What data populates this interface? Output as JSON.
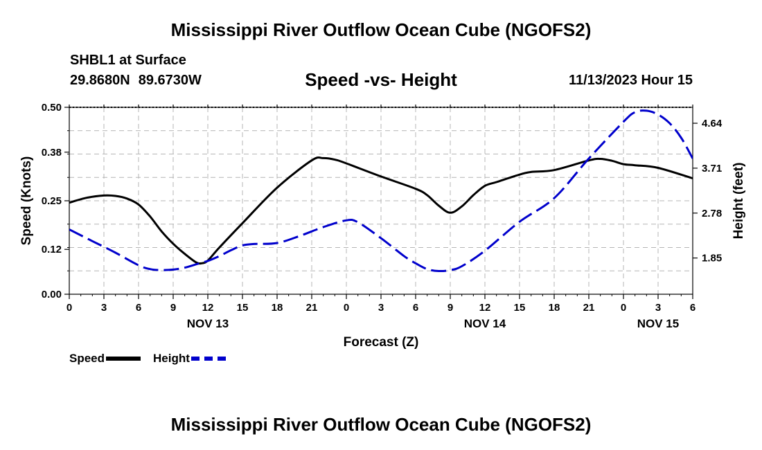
{
  "title": "Mississippi River Outflow Ocean Cube (NGOFS2)",
  "station": "SHBL1 at Surface",
  "latitude": "29.8680N",
  "longitude": "89.6730W",
  "subtitle": "Speed -vs- Height",
  "datetime": "11/13/2023 Hour 15",
  "legend": [
    {
      "label": "Speed",
      "color": "#000000",
      "style": "solid"
    },
    {
      "label": "Height",
      "color": "#0000cc",
      "style": "dashed"
    }
  ],
  "footer_title": "Mississippi River Outflow Ocean Cube (NGOFS2)",
  "chart_data": {
    "type": "line",
    "title": "Speed -vs- Height",
    "xlabel": "Forecast (Z)",
    "ylabel": "Speed (Knots)",
    "y2label": "Height (feet)",
    "xlim": [
      0,
      54
    ],
    "ylim": [
      0,
      0.5
    ],
    "y2lim": [
      1.1,
      4.97
    ],
    "grid": true,
    "x_ticks": [
      0,
      3,
      6,
      9,
      12,
      15,
      18,
      21,
      24,
      27,
      30,
      33,
      36,
      39,
      42,
      45,
      48,
      51,
      54
    ],
    "x_tick_labels": [
      "0",
      "3",
      "6",
      "9",
      "12",
      "15",
      "18",
      "21",
      "0",
      "3",
      "6",
      "9",
      "12",
      "15",
      "18",
      "21",
      "0",
      "3",
      "6"
    ],
    "date_labels": [
      {
        "x": 12,
        "label": "NOV 13"
      },
      {
        "x": 36,
        "label": "NOV 14"
      },
      {
        "x": 51,
        "label": "NOV 15"
      }
    ],
    "y_ticks": [
      0.0,
      0.12,
      0.25,
      0.38,
      0.5
    ],
    "y_tick_labels": [
      "0.00",
      "0.12",
      "0.25",
      "0.38",
      "0.50"
    ],
    "y2_ticks": [
      1.85,
      2.78,
      3.71,
      4.64
    ],
    "y2_tick_labels": [
      "1.85",
      "2.78",
      "3.71",
      "4.64"
    ],
    "series": [
      {
        "name": "Speed",
        "axis": "left",
        "color": "#000000",
        "dash": "solid",
        "x": [
          0,
          1.5,
          3,
          4,
          5,
          6,
          7,
          8,
          9,
          10,
          11,
          11.5,
          12,
          13,
          15,
          18,
          21,
          22,
          23,
          24,
          27,
          30,
          31,
          32,
          33,
          34,
          35,
          36,
          37,
          39,
          40,
          42,
          45,
          46,
          47,
          48,
          49,
          51,
          54
        ],
        "values": [
          0.245,
          0.258,
          0.264,
          0.263,
          0.256,
          0.24,
          0.208,
          0.168,
          0.135,
          0.108,
          0.085,
          0.083,
          0.09,
          0.125,
          0.19,
          0.285,
          0.358,
          0.364,
          0.36,
          0.35,
          0.315,
          0.282,
          0.265,
          0.237,
          0.218,
          0.235,
          0.265,
          0.29,
          0.3,
          0.32,
          0.327,
          0.332,
          0.358,
          0.362,
          0.357,
          0.348,
          0.345,
          0.338,
          0.31
        ]
      },
      {
        "name": "Height",
        "axis": "right",
        "color": "#0000cc",
        "dash": "dashed",
        "x": [
          0,
          2,
          4,
          6,
          7,
          8,
          9,
          10,
          11,
          12,
          13,
          14,
          15,
          16,
          18,
          20,
          22,
          24,
          25,
          27,
          29,
          30,
          31,
          32,
          33,
          34,
          36,
          39,
          42,
          45,
          48,
          49,
          50,
          51,
          52,
          53,
          54
        ],
        "values": [
          2.44,
          2.2,
          1.96,
          1.7,
          1.62,
          1.6,
          1.61,
          1.65,
          1.72,
          1.79,
          1.89,
          2.01,
          2.11,
          2.14,
          2.16,
          2.31,
          2.49,
          2.63,
          2.59,
          2.26,
          1.89,
          1.74,
          1.62,
          1.58,
          1.6,
          1.68,
          2.0,
          2.6,
          3.09,
          3.91,
          4.67,
          4.87,
          4.9,
          4.82,
          4.64,
          4.34,
          3.91
        ]
      }
    ]
  }
}
